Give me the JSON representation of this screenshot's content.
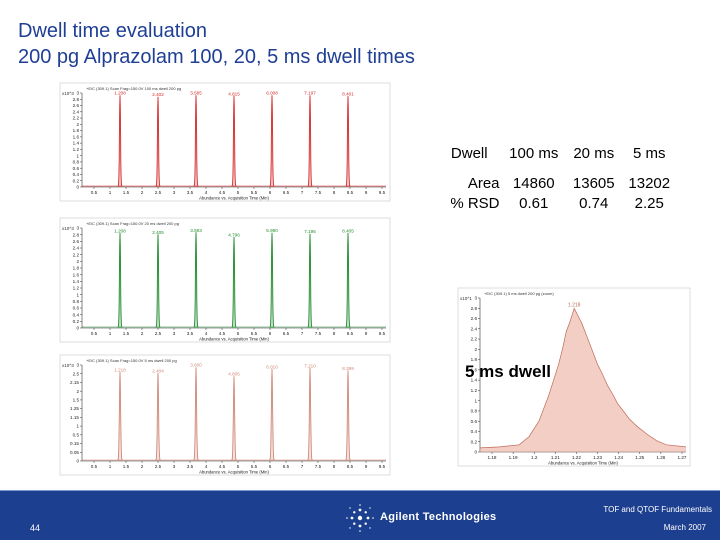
{
  "title": {
    "line1": "Dwell time evaluation",
    "line2": "200 pg Alprazolam 100, 20, 5 ms dwell times"
  },
  "table": {
    "header": [
      "Dwell",
      "100 ms",
      "20 ms",
      "5 ms"
    ],
    "rows": [
      [
        "Area",
        "14860",
        "13605",
        "13202"
      ],
      [
        "% RSD",
        "0.61",
        "0.74",
        "2.25"
      ]
    ]
  },
  "inset_label": "5 ms dwell",
  "footer": {
    "slide_number": "44",
    "brand": "Agilent Technologies",
    "right_line1": "TOF and QTOF Fundamentals",
    "right_line2": "March 2007"
  },
  "colors": {
    "red": "#d42a2a",
    "green": "#1f8a2c",
    "pink": "#d08878",
    "title": "#1f3f95",
    "footer": "#1d3f8f"
  },
  "chart_data": [
    {
      "type": "line",
      "name": "",
      "header": "+EIC (309.1) Scan Frag=150.0V 100 ms dwell 200 pg",
      "color": "#d42a2a",
      "y_exp": "x10^3",
      "yticks": [
        "3",
        "2.8",
        "2.6",
        "2.4",
        "2.2",
        "2",
        "1.8",
        "1.6",
        "1.4",
        "1.2",
        "1",
        "0.8",
        "0.6",
        "0.4",
        "0.2",
        "0"
      ],
      "ylim": [
        0,
        3
      ],
      "xlim": [
        0,
        9.6
      ],
      "xticks": [
        "0.5",
        "1",
        "1.5",
        "2",
        "2.5",
        "3",
        "3.5",
        "4",
        "4.5",
        "5",
        "5.5",
        "6",
        "6.5",
        "7",
        "7.5",
        "8",
        "8.5",
        "9",
        "9.5"
      ],
      "xlabel": "Abundance vs. Acquisition Time (Min)",
      "peaks": [
        {
          "rt": 1.2,
          "h": 2.9,
          "label": "1.208"
        },
        {
          "rt": 2.4,
          "h": 2.85,
          "label": "2.402"
        },
        {
          "rt": 3.6,
          "h": 2.9,
          "label": "3.585"
        },
        {
          "rt": 4.8,
          "h": 2.88,
          "label": "4.815"
        },
        {
          "rt": 6.0,
          "h": 2.9,
          "label": "6.008"
        },
        {
          "rt": 7.2,
          "h": 2.9,
          "label": "7.197"
        },
        {
          "rt": 8.4,
          "h": 2.87,
          "label": "8.401"
        }
      ],
      "peak_width": 0.035
    },
    {
      "type": "line",
      "name": "",
      "header": "+EIC (309.1) Scan Frag=150.0V 20 ms dwell 200 pg",
      "color": "#1f8a2c",
      "y_exp": "x10^3",
      "yticks": [
        "3",
        "2.8",
        "2.6",
        "2.4",
        "2.2",
        "2",
        "1.8",
        "1.6",
        "1.4",
        "1.2",
        "1",
        "0.8",
        "0.6",
        "0.4",
        "0.2",
        "0"
      ],
      "ylim": [
        0,
        3
      ],
      "xlim": [
        0,
        9.6
      ],
      "xticks": [
        "0.5",
        "1",
        "1.5",
        "2",
        "2.5",
        "3",
        "3.5",
        "4",
        "4.5",
        "5",
        "5.5",
        "6",
        "6.5",
        "7",
        "7.5",
        "8",
        "8.5",
        "9",
        "9.5"
      ],
      "xlabel": "Abundance vs. Acquisition Time (Min)",
      "peaks": [
        {
          "rt": 1.2,
          "h": 2.82,
          "label": "1.208"
        },
        {
          "rt": 2.4,
          "h": 2.78,
          "label": "2.405"
        },
        {
          "rt": 3.6,
          "h": 2.84,
          "label": "3.593"
        },
        {
          "rt": 4.8,
          "h": 2.7,
          "label": "4.796"
        },
        {
          "rt": 6.0,
          "h": 2.83,
          "label": "5.990"
        },
        {
          "rt": 7.2,
          "h": 2.8,
          "label": "7.195"
        },
        {
          "rt": 8.4,
          "h": 2.82,
          "label": "8.405"
        }
      ],
      "peak_width": 0.035
    },
    {
      "type": "line",
      "name": "",
      "header": "+EIC (309.1) Scan Frag=150.0V 5 ms dwell 200 pg",
      "color": "#d08878",
      "y_exp": "x10^3",
      "yticks": [
        "3",
        "2.5",
        "2.15",
        "2",
        "1.5",
        "1.25",
        "1.15",
        "1",
        "0.5",
        "0.15",
        "0.05",
        "0"
      ],
      "ylim": [
        0,
        3
      ],
      "xlim": [
        0,
        9.6
      ],
      "xticks": [
        "0.5",
        "1",
        "1.5",
        "2",
        "2.5",
        "3",
        "3.5",
        "4",
        "4.5",
        "5",
        "5.5",
        "6",
        "6.5",
        "7",
        "7.5",
        "8",
        "8.5",
        "9",
        "9.5"
      ],
      "xlabel": "Abundance vs. Acquisition Time (Min)",
      "peaks": [
        {
          "rt": 1.2,
          "h": 2.75,
          "label": "1.218"
        },
        {
          "rt": 2.4,
          "h": 2.72,
          "label": "2.404"
        },
        {
          "rt": 3.6,
          "h": 2.9,
          "label": "3.600"
        },
        {
          "rt": 4.8,
          "h": 2.62,
          "label": "4.805"
        },
        {
          "rt": 6.0,
          "h": 2.85,
          "label": "6.010"
        },
        {
          "rt": 7.2,
          "h": 2.88,
          "label": "7.210"
        },
        {
          "rt": 8.4,
          "h": 2.8,
          "label": "8.399"
        }
      ],
      "peak_width": 0.04
    },
    {
      "type": "area",
      "name": "",
      "header": "+EIC (309.1) 5 ms dwell 200 pg (zoom)",
      "color": "#e8a596",
      "y_exp": "x10^1",
      "yticks": [
        "3",
        "2.8",
        "2.6",
        "2.4",
        "2.2",
        "2",
        "1.8",
        "1.6",
        "1.4",
        "1.2",
        "1",
        "0.8",
        "0.6",
        "0.4",
        "0.2",
        "0"
      ],
      "ylim": [
        0,
        3
      ],
      "xlim": [
        1.17,
        1.275
      ],
      "xticks": [
        "1.18",
        "1.19",
        "1.2",
        "1.21",
        "1.22",
        "1.23",
        "1.24",
        "1.25",
        "1.26",
        "1.27"
      ],
      "xlabel": "Abundance vs. Acquisition Time (Min)",
      "apex": {
        "x": 1.218,
        "y": 2.8,
        "label": "1.218"
      },
      "x": [
        1.17,
        1.18,
        1.19,
        1.195,
        1.2,
        1.205,
        1.21,
        1.212,
        1.214,
        1.216,
        1.218,
        1.22,
        1.222,
        1.224,
        1.226,
        1.228,
        1.23,
        1.232,
        1.235,
        1.238,
        1.24,
        1.243,
        1.246,
        1.25,
        1.255,
        1.26,
        1.265,
        1.275
      ],
      "y": [
        0.08,
        0.1,
        0.14,
        0.3,
        0.6,
        1.1,
        1.7,
        2.0,
        2.35,
        2.55,
        2.8,
        2.65,
        2.5,
        2.3,
        2.1,
        1.9,
        1.7,
        1.55,
        1.3,
        1.1,
        0.95,
        0.8,
        0.65,
        0.5,
        0.35,
        0.22,
        0.14,
        0.1
      ]
    }
  ]
}
